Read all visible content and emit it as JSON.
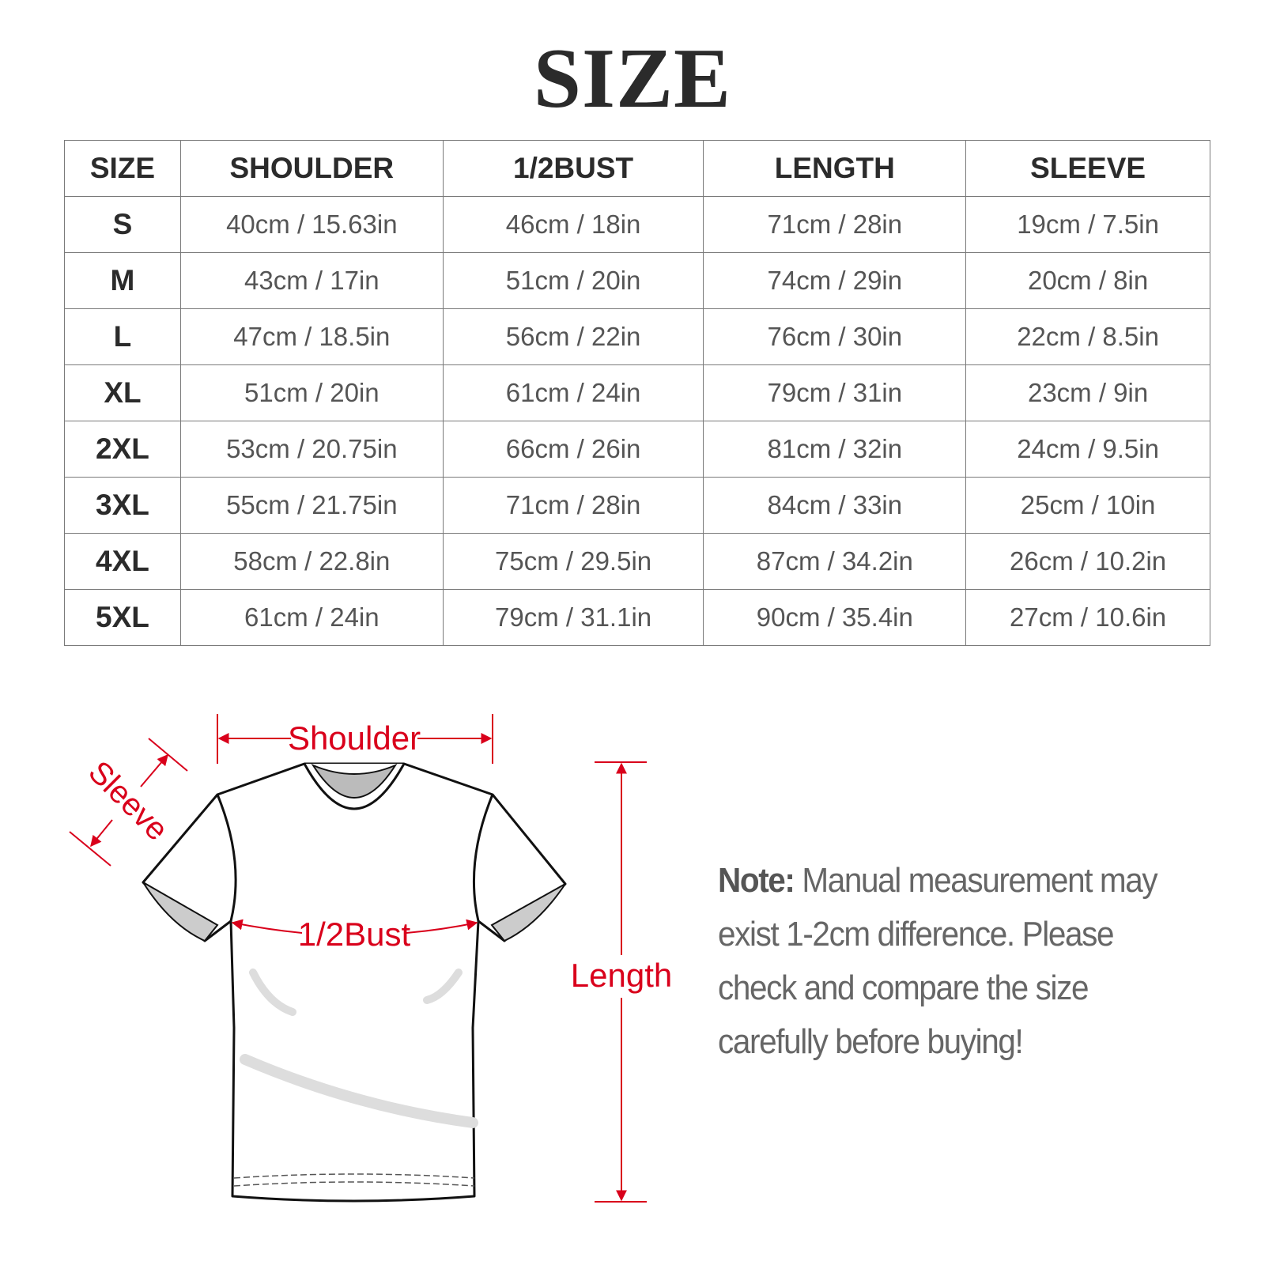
{
  "title": "SIZE",
  "table": {
    "headers": [
      "SIZE",
      "SHOULDER",
      "1/2BUST",
      "LENGTH",
      "SLEEVE"
    ],
    "rows": [
      [
        "S",
        "40cm / 15.63in",
        "46cm / 18in",
        "71cm / 28in",
        "19cm / 7.5in"
      ],
      [
        "M",
        "43cm / 17in",
        "51cm / 20in",
        "74cm / 29in",
        "20cm / 8in"
      ],
      [
        "L",
        "47cm / 18.5in",
        "56cm / 22in",
        "76cm / 30in",
        "22cm / 8.5in"
      ],
      [
        "XL",
        "51cm / 20in",
        "61cm / 24in",
        "79cm / 31in",
        "23cm / 9in"
      ],
      [
        "2XL",
        "53cm / 20.75in",
        "66cm / 26in",
        "81cm / 32in",
        "24cm / 9.5in"
      ],
      [
        "3XL",
        "55cm / 21.75in",
        "71cm / 28in",
        "84cm / 33in",
        "25cm / 10in"
      ],
      [
        "4XL",
        "58cm / 22.8in",
        "75cm / 29.5in",
        "87cm / 34.2in",
        "26cm / 10.2in"
      ],
      [
        "5XL",
        "61cm / 24in",
        "79cm / 31.1in",
        "90cm / 35.4in",
        "27cm / 10.6in"
      ]
    ]
  },
  "diagram": {
    "shoulder_label": "Shoulder",
    "sleeve_label": "Sleeve",
    "bust_label": "1/2Bust",
    "length_label": "Length",
    "accent_color": "#d9001b"
  },
  "note": {
    "label": "Note:",
    "text": " Manual measurement may exist 1-2cm difference. Please check and compare the size carefully before buying!"
  }
}
